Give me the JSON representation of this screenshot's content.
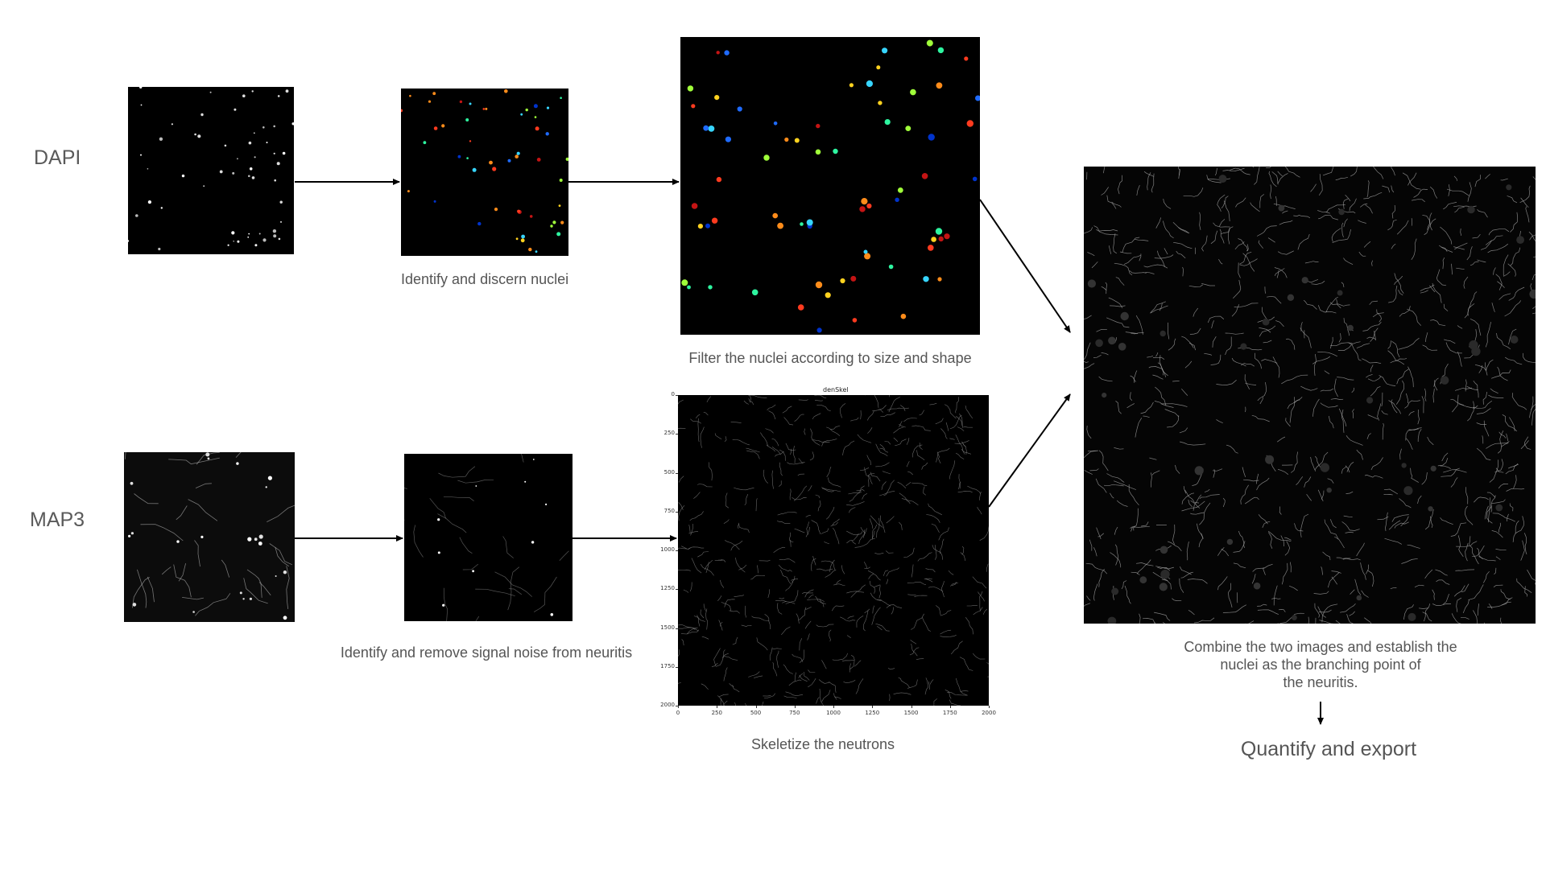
{
  "rows": {
    "dapi_label": "DAPI",
    "map3_label": "MAP3"
  },
  "captions": {
    "identify_nuclei": "Identify and discern nuclei",
    "filter_nuclei": "Filter the nuclei according to size and shape",
    "remove_noise": "Identify and remove signal noise from neuritis",
    "skeletize": "Skeletize the neutrons",
    "combine_line1": "Combine the two images and establish the",
    "combine_line2": "nuclei as the branching point of",
    "combine_line3": "the neuritis.",
    "quantify": "Quantify and export"
  },
  "skeleton_plot": {
    "title": "denSkel",
    "y_ticks": [
      "0",
      "250",
      "500",
      "750",
      "1000",
      "1250",
      "1500",
      "1750",
      "2000"
    ],
    "x_ticks": [
      "0",
      "250",
      "500",
      "750",
      "1000",
      "1250",
      "1500",
      "1750",
      "2000"
    ]
  },
  "colors": {
    "panel_bg": "#000000",
    "text": "#555555",
    "arrow": "#000000"
  }
}
